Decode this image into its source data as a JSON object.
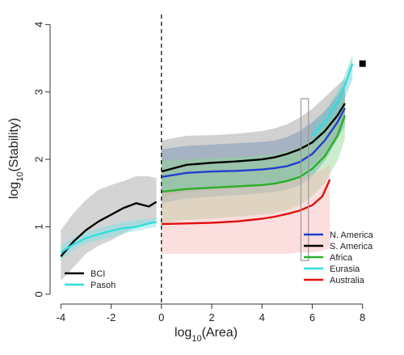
{
  "chart_data": {
    "type": "line",
    "xlabel": {
      "base": "log",
      "sub": "10",
      "rest": "(Area)"
    },
    "ylabel": {
      "base": "log",
      "sub": "10",
      "rest": "(Stability)"
    },
    "xlim": [
      -4.3,
      8.3
    ],
    "ylim": [
      -0.05,
      4.1
    ],
    "xticks": [
      "-4",
      "-2",
      "0",
      "2",
      "4",
      "6",
      "8"
    ],
    "xtick_values": [
      -4,
      -2,
      0,
      2,
      4,
      6,
      8
    ],
    "yticks": [
      "0",
      "1",
      "2",
      "3",
      "4"
    ],
    "ytick_values": [
      0,
      1,
      2,
      3,
      4
    ],
    "divider_x": 0,
    "highlight_box": {
      "x0": 5.55,
      "x1": 5.85,
      "y0": 0.5,
      "y1": 2.9
    },
    "point": {
      "x": 8.0,
      "y": 3.42,
      "color": "#000000"
    },
    "left_legend": [
      "BCI",
      "Pasoh"
    ],
    "right_legend": [
      "N. America",
      "S. America",
      "Africa",
      "Eurasia",
      "Australia"
    ],
    "series": [
      {
        "name": "BCI",
        "color": "#000000",
        "band_color": "#a0a0a0",
        "x": [
          -4.0,
          -3.5,
          -3.0,
          -2.5,
          -2.0,
          -1.5,
          -1.0,
          -0.5,
          -0.2
        ],
        "y": [
          0.56,
          0.78,
          0.95,
          1.08,
          1.18,
          1.28,
          1.35,
          1.3,
          1.37
        ],
        "lower": [
          0.2,
          0.4,
          0.6,
          0.72,
          0.8,
          0.9,
          1.0,
          1.05,
          1.1
        ],
        "upper": [
          0.95,
          1.2,
          1.4,
          1.55,
          1.62,
          1.68,
          1.75,
          1.75,
          1.72
        ]
      },
      {
        "name": "Pasoh",
        "color": "#33dddd",
        "band_color": "#7be3e6",
        "x": [
          -4.0,
          -3.5,
          -3.0,
          -2.5,
          -2.0,
          -1.5,
          -1.0,
          -0.5,
          -0.2
        ],
        "y": [
          0.62,
          0.74,
          0.83,
          0.89,
          0.94,
          0.98,
          1.0,
          1.05,
          1.07
        ],
        "lower": [
          0.5,
          0.65,
          0.75,
          0.8,
          0.85,
          0.9,
          0.94,
          0.98,
          1.0
        ],
        "upper": [
          0.72,
          0.84,
          0.92,
          0.98,
          1.03,
          1.07,
          1.1,
          1.12,
          1.14
        ]
      },
      {
        "name": "N. America",
        "color": "#1f3fd1",
        "band_color": "#4f86c6",
        "x": [
          0,
          1,
          2,
          3,
          4,
          4.5,
          5,
          5.5,
          6,
          6.5,
          7,
          7.3
        ],
        "y": [
          1.74,
          1.8,
          1.82,
          1.83,
          1.85,
          1.87,
          1.9,
          1.96,
          2.08,
          2.28,
          2.55,
          2.76
        ],
        "lower": [
          1.35,
          1.42,
          1.45,
          1.47,
          1.5,
          1.52,
          1.55,
          1.62,
          1.75,
          1.98,
          2.3,
          2.5
        ],
        "upper": [
          2.15,
          2.2,
          2.22,
          2.24,
          2.26,
          2.28,
          2.33,
          2.42,
          2.55,
          2.72,
          2.95,
          3.1
        ]
      },
      {
        "name": "S. America",
        "color": "#000000",
        "band_color": "#9a9a9a",
        "x": [
          0,
          1,
          2,
          3,
          4,
          4.5,
          5,
          5.5,
          6,
          6.5,
          7,
          7.3
        ],
        "y": [
          1.82,
          1.92,
          1.95,
          1.97,
          2.0,
          2.03,
          2.08,
          2.15,
          2.25,
          2.42,
          2.65,
          2.83
        ],
        "lower": [
          1.45,
          1.52,
          1.55,
          1.57,
          1.6,
          1.63,
          1.68,
          1.78,
          1.9,
          2.1,
          2.38,
          2.6
        ],
        "upper": [
          2.28,
          2.35,
          2.36,
          2.38,
          2.42,
          2.46,
          2.52,
          2.62,
          2.75,
          2.92,
          3.1,
          3.2
        ]
      },
      {
        "name": "Africa",
        "color": "#2bb02b",
        "band_color": "#8fd88f",
        "x": [
          0,
          1,
          2,
          3,
          4,
          4.5,
          5,
          5.5,
          6,
          6.5,
          7,
          7.3
        ],
        "y": [
          1.52,
          1.56,
          1.58,
          1.6,
          1.62,
          1.64,
          1.68,
          1.74,
          1.86,
          2.05,
          2.35,
          2.65
        ],
        "lower": [
          1.05,
          1.1,
          1.12,
          1.15,
          1.18,
          1.2,
          1.25,
          1.32,
          1.45,
          1.65,
          1.98,
          2.3
        ],
        "upper": [
          1.98,
          2.0,
          2.02,
          2.04,
          2.06,
          2.08,
          2.12,
          2.18,
          2.3,
          2.5,
          2.75,
          2.95
        ]
      },
      {
        "name": "Eurasia",
        "color": "#33dddd",
        "band_color": "#66cccc",
        "x": [
          6.0,
          6.5,
          7.0,
          7.3,
          7.6
        ],
        "y": [
          2.35,
          2.55,
          2.85,
          3.1,
          3.42
        ],
        "lower": [
          2.2,
          2.38,
          2.65,
          2.9,
          3.2
        ],
        "upper": [
          2.5,
          2.7,
          3.0,
          3.25,
          3.55
        ]
      },
      {
        "name": "Australia",
        "color": "#e01010",
        "band_color": "#f6b6b6",
        "x": [
          0,
          1,
          2,
          3,
          4,
          4.5,
          5,
          5.5,
          6,
          6.4,
          6.7
        ],
        "y": [
          1.04,
          1.05,
          1.06,
          1.08,
          1.12,
          1.15,
          1.19,
          1.24,
          1.32,
          1.45,
          1.7
        ],
        "lower": [
          0.6,
          0.6,
          0.6,
          0.6,
          0.6,
          0.6,
          0.6,
          0.62,
          0.62,
          0.65,
          0.68
        ],
        "upper": [
          1.55,
          1.56,
          1.57,
          1.59,
          1.62,
          1.65,
          1.68,
          1.72,
          1.78,
          1.85,
          1.92
        ]
      }
    ]
  }
}
